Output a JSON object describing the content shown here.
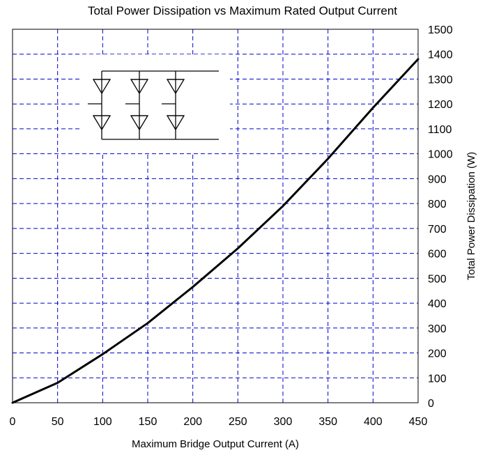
{
  "chart_data": {
    "type": "line",
    "title": "Total Power Dissipation vs Maximum Rated Output Current",
    "xlabel": "Maximum Bridge Output Current (A)",
    "ylabel": "Total Power Dissipation (W)",
    "xlim": [
      0,
      450
    ],
    "ylim": [
      0,
      1500
    ],
    "xticks": [
      0,
      50,
      100,
      150,
      200,
      250,
      300,
      350,
      400,
      450
    ],
    "yticks": [
      0,
      100,
      200,
      300,
      400,
      500,
      600,
      700,
      800,
      900,
      1000,
      1100,
      1200,
      1300,
      1400,
      1500
    ],
    "y_axis_side": "right",
    "grid": true,
    "series": [
      {
        "x": [
          0,
          50,
          100,
          150,
          200,
          250,
          300,
          350,
          400,
          450
        ],
        "y": [
          0,
          80,
          195,
          320,
          465,
          620,
          790,
          980,
          1185,
          1380
        ]
      }
    ],
    "colors": {
      "line": "#000000",
      "grid": "#0000cc"
    },
    "inset": "three-phase diode bridge schematic"
  }
}
